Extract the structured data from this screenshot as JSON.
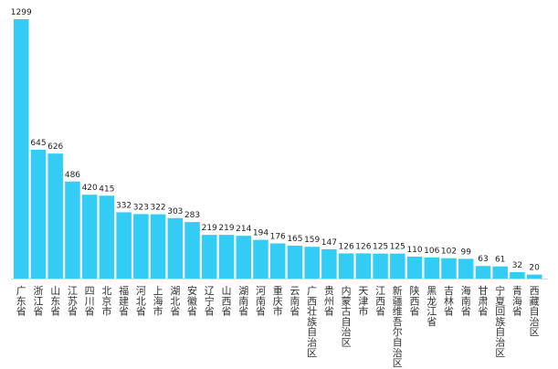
{
  "chart_data": {
    "type": "bar",
    "categories": [
      "广东省",
      "浙江省",
      "山东省",
      "江苏省",
      "四川省",
      "北京市",
      "福建省",
      "河北省",
      "上海市",
      "湖北省",
      "安徽省",
      "辽宁省",
      "山西省",
      "湖南省",
      "河南省",
      "重庆市",
      "云南省",
      "广西壮族自治区",
      "贵州省",
      "内蒙古自治区",
      "天津市",
      "江西省",
      "新疆维吾尔自治区",
      "陕西省",
      "黑龙江省",
      "吉林省",
      "海南省",
      "甘肃省",
      "宁夏回族自治区",
      "青海省",
      "西藏自治区"
    ],
    "values": [
      1299,
      645,
      626,
      486,
      420,
      415,
      332,
      323,
      322,
      303,
      283,
      219,
      219,
      214,
      194,
      176,
      165,
      159,
      147,
      126,
      126,
      125,
      125,
      110,
      106,
      102,
      99,
      63,
      61,
      32,
      20
    ],
    "title": "",
    "xlabel": "",
    "ylabel": "",
    "ylim": [
      0,
      1299
    ],
    "grid": false,
    "legend": "none",
    "bar_color": "#33CCF5"
  }
}
